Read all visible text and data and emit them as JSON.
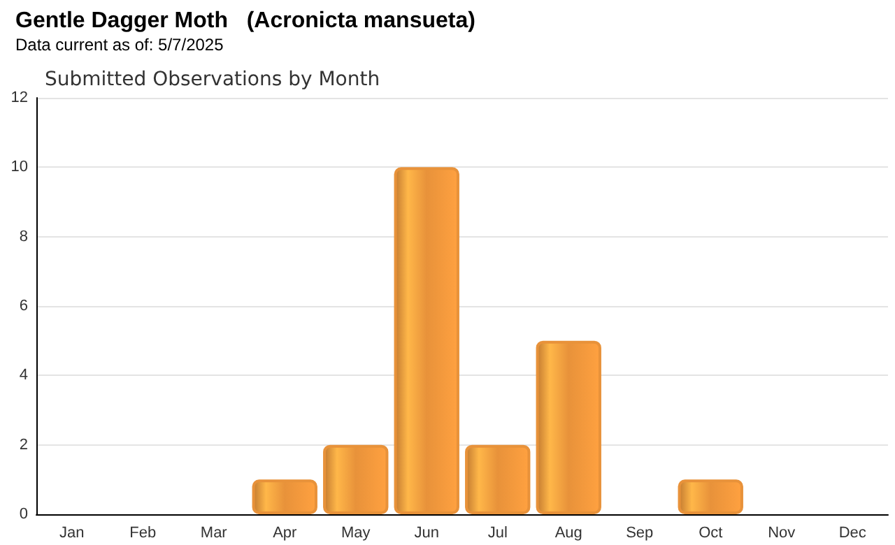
{
  "chart_data": {
    "type": "bar",
    "title": "Gentle Dagger Moth   (Acronicta mansueta)",
    "subtitle": "Data current as of: 5/7/2025",
    "annotations": [
      "Submitted Observations by Month"
    ],
    "categories": [
      "Jan",
      "Feb",
      "Mar",
      "Apr",
      "May",
      "Jun",
      "Jul",
      "Aug",
      "Sep",
      "Oct",
      "Nov",
      "Dec"
    ],
    "values": [
      0,
      0,
      0,
      1,
      2,
      10,
      2,
      5,
      0,
      1,
      0,
      0
    ],
    "color": "#e8923a",
    "ylim": [
      0,
      12
    ],
    "yticks": [
      0,
      2,
      4,
      6,
      8,
      10,
      12
    ],
    "grid": "y"
  }
}
